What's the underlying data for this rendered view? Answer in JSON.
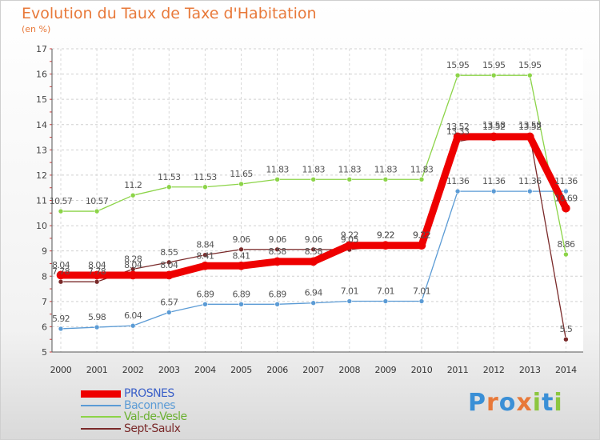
{
  "title": "Evolution du Taux de Taxe d'Habitation",
  "subtitle": "(en %)",
  "logo": {
    "letters": [
      "P",
      "r",
      "o",
      "x",
      "i",
      "t",
      "i"
    ],
    "colors": [
      "#3a8fd6",
      "#e8793a",
      "#3a8fd6",
      "#e8793a",
      "#8cc63f",
      "#3a8fd6",
      "#8cc63f"
    ]
  },
  "chart_data": {
    "type": "line",
    "x": [
      "2000",
      "2001",
      "2002",
      "2003",
      "2004",
      "2005",
      "2006",
      "2007",
      "2008",
      "2009",
      "2010",
      "2011",
      "2012",
      "2013",
      "2014"
    ],
    "yticks": [
      "5",
      "6",
      "7",
      "8",
      "9",
      "10",
      "11",
      "12",
      "13",
      "14",
      "15",
      "16",
      "17"
    ],
    "ylim": [
      5,
      17
    ],
    "grid": true,
    "legend_position": "bottom-left",
    "series": [
      {
        "name": "PROSNES",
        "color": "#ee0000",
        "label_color": "#3a5fc8",
        "values": [
          8.04,
          8.04,
          8.04,
          8.04,
          8.41,
          8.41,
          8.58,
          8.58,
          9.22,
          9.22,
          9.22,
          13.52,
          13.52,
          13.52,
          10.69
        ],
        "labels": [
          "8.04",
          "8.04",
          "8.04",
          "8.04",
          "8.41",
          "8.41",
          "8.58",
          "8.58",
          "9.22",
          "9.22",
          "9.22",
          "13.52",
          "13.52",
          "13.52",
          "10.69"
        ]
      },
      {
        "name": "Baconnes",
        "color": "#5b9bd5",
        "label_color": "#5b9bd5",
        "values": [
          5.92,
          5.98,
          6.04,
          6.57,
          6.89,
          6.89,
          6.89,
          6.94,
          7.01,
          7.01,
          7.01,
          11.36,
          11.36,
          11.36,
          11.36
        ],
        "labels": [
          "5.92",
          "5.98",
          "6.04",
          "6.57",
          "6.89",
          "6.89",
          "6.89",
          "6.94",
          "7.01",
          "7.01",
          "7.01",
          "11.36",
          "11.36",
          "11.36",
          "11.36"
        ]
      },
      {
        "name": "Val-de-Vesle",
        "color": "#8cd448",
        "label_color": "#6ab030",
        "values": [
          10.57,
          10.57,
          11.2,
          11.53,
          11.53,
          11.65,
          11.83,
          11.83,
          11.83,
          11.83,
          11.83,
          15.95,
          15.95,
          15.95,
          8.86
        ],
        "labels": [
          "10.57",
          "10.57",
          "11.2",
          "11.53",
          "11.53",
          "11.65",
          "11.83",
          "11.83",
          "11.83",
          "11.83",
          "11.83",
          "15.95",
          "15.95",
          "15.95",
          "8.86"
        ]
      },
      {
        "name": "Sept-Saulx",
        "color": "#7a2a2a",
        "label_color": "#7a2a2a",
        "values": [
          7.78,
          7.78,
          8.28,
          8.55,
          8.84,
          9.06,
          9.06,
          9.06,
          9.05,
          9.22,
          9.22,
          13.33,
          13.58,
          13.58,
          5.5
        ],
        "labels": [
          "7.78",
          "7.78",
          "8.28",
          "8.55",
          "8.84",
          "9.06",
          "9.06",
          "9.06",
          "9.05",
          "9.22",
          "9.22",
          "13.33",
          "13.58",
          "13.58",
          "5.5"
        ]
      }
    ]
  }
}
